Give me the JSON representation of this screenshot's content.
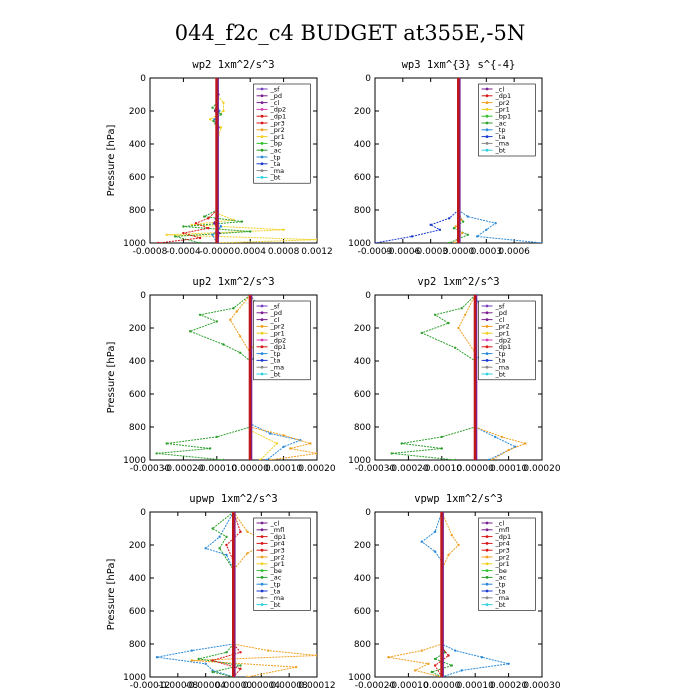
{
  "figure": {
    "title": "044_f2c_c4  BUDGET at355E,-5N"
  },
  "colors": {
    "sf": "#7a3fbf",
    "pd": "#7a1f8f",
    "cl": "#7a1f8f",
    "dp2": "#d43fb8",
    "dp1": "#d81818",
    "pr3": "#d81818",
    "pr2": "#f0a020",
    "pr1": "#f0d020",
    "bp": "#30c030",
    "bp1": "#30c030",
    "ac": "#2ea02e",
    "tp": "#2a8ad8",
    "ta": "#1b3ad0",
    "ma": "#8a8a8a",
    "bt": "#30d0e0",
    "mfl": "#7a1f8f",
    "pr4": "#d81818",
    "be": "#30c030"
  },
  "chart_data": [
    {
      "type": "line",
      "title": "wp2   1xm^2/s^3",
      "ylabel": "Pressure [hPa]",
      "ylim": [
        1000,
        0
      ],
      "xlim": [
        -0.0008,
        0.0012
      ],
      "xticks": [
        "-0.0008",
        "-0.0004",
        "-0.0000",
        "0.0004",
        "0.0008",
        "0.0012"
      ],
      "xtick_values": [
        -0.0008,
        -0.0004,
        0.0,
        0.0004,
        0.0008,
        0.0012
      ],
      "yticks": [
        "0",
        "200",
        "400",
        "600",
        "800",
        "1000"
      ],
      "legend": [
        "_sf",
        "_pd",
        "_cl",
        "_dp2",
        "_dp1",
        "_pr3",
        "_pr2",
        "_pr1",
        "_bp",
        "_ac",
        "_tp",
        "_ta",
        "_ma",
        "_bt"
      ],
      "legend_position": "top-right",
      "series": [
        {
          "name": "_pr1",
          "x": [
            0,
            0,
            8e-05,
            8e-05,
            -8e-05,
            5e-05,
            0,
            0,
            0.0002,
            -0.0003,
            0.0008,
            -0.0006,
            0.0012,
            0
          ],
          "y": [
            0,
            100,
            150,
            200,
            250,
            300,
            400,
            820,
            860,
            890,
            920,
            950,
            980,
            1000
          ]
        },
        {
          "name": "_ac",
          "x": [
            0,
            0,
            -5e-05,
            5e-05,
            -4e-05,
            0,
            0,
            -0.00015,
            0.0003,
            -0.0004,
            0.0004,
            -0.0005,
            -0.0002
          ],
          "y": [
            0,
            150,
            180,
            220,
            260,
            300,
            800,
            840,
            870,
            900,
            930,
            960,
            1000
          ]
        },
        {
          "name": "_dp1",
          "x": [
            0,
            0,
            -0.0001,
            -0.00025,
            -0.0001,
            -0.0004,
            -0.0002,
            -0.0007
          ],
          "y": [
            0,
            800,
            850,
            880,
            910,
            940,
            970,
            1000
          ]
        },
        {
          "name": "_tp",
          "x": [
            0,
            0,
            3e-05,
            -3e-05,
            0,
            0,
            5e-05,
            -5e-05,
            0
          ],
          "y": [
            0,
            150,
            200,
            250,
            300,
            860,
            900,
            950,
            1000
          ]
        },
        {
          "name": "_cl",
          "x": [
            0,
            2e-05,
            -2e-05,
            2e-05,
            0,
            0,
            -3e-05,
            3e-05,
            0
          ],
          "y": [
            0,
            100,
            200,
            300,
            400,
            820,
            880,
            940,
            1000
          ]
        }
      ]
    },
    {
      "type": "line",
      "title": "wp3   1xm^{3} s^{-4}",
      "ylabel": "",
      "ylim": [
        1000,
        0
      ],
      "xlim": [
        -0.0009,
        0.0009
      ],
      "xticks": [
        "-0.0009",
        "-0.0006",
        "-0.0003",
        "0.0000",
        "0.0003",
        "0.0006"
      ],
      "xtick_values": [
        -0.0009,
        -0.0006,
        -0.0003,
        0.0,
        0.0003,
        0.0006
      ],
      "yticks": [
        "0",
        "200",
        "400",
        "600",
        "800",
        "1000"
      ],
      "legend": [
        "_cl",
        "_dp1",
        "_pr2",
        "_pr1",
        "_bp1",
        "_ac",
        "_tp",
        "_ta",
        "_ma",
        "_bt"
      ],
      "legend_position": "top-right",
      "series": [
        {
          "name": "_ta",
          "x": [
            0,
            0,
            -0.0001,
            -0.0003,
            -0.0002,
            -0.0005,
            -0.0009
          ],
          "y": [
            0,
            800,
            850,
            890,
            920,
            960,
            1000
          ]
        },
        {
          "name": "_tp",
          "x": [
            0,
            0,
            0.0001,
            0.0004,
            0.0003,
            0.0002,
            0.0009
          ],
          "y": [
            0,
            800,
            840,
            880,
            920,
            960,
            1000
          ]
        },
        {
          "name": "_ac",
          "x": [
            0,
            0,
            5e-05,
            -5e-05,
            0.0001,
            -0.0001
          ],
          "y": [
            0,
            820,
            870,
            910,
            950,
            1000
          ]
        },
        {
          "name": "_pr2",
          "x": [
            0,
            0,
            3e-05,
            -3e-05,
            4e-05,
            -4e-05
          ],
          "y": [
            0,
            800,
            860,
            900,
            940,
            1000
          ]
        },
        {
          "name": "_dp1",
          "x": [
            0,
            0,
            0
          ],
          "y": [
            0,
            500,
            1000
          ]
        }
      ]
    },
    {
      "type": "line",
      "title": "up2   1xm^2/s^3",
      "ylabel": "Pressure [hPa]",
      "ylim": [
        1000,
        0
      ],
      "xlim": [
        -0.0003,
        0.0002
      ],
      "xticks": [
        "-0.00030",
        "-0.00020",
        "-0.00010",
        "0.00000",
        "0.00010",
        "0.00020"
      ],
      "xtick_values": [
        -0.0003,
        -0.0002,
        -0.0001,
        0.0,
        0.0001,
        0.0002
      ],
      "yticks": [
        "0",
        "200",
        "400",
        "600",
        "800",
        "1000"
      ],
      "legend": [
        "_sf",
        "_pd",
        "_cl",
        "_pr2",
        "_pr1",
        "_dp2",
        "_dp1",
        "_tp",
        "_ta",
        "_ma",
        "_bt"
      ],
      "legend_position": "top-right",
      "series": [
        {
          "name": "_ac",
          "x": [
            0,
            -5e-05,
            -0.00015,
            -0.0001,
            -0.00018,
            -8e-05,
            -3e-05,
            0,
            0,
            -0.0001,
            -0.00025,
            -0.00012,
            -0.00028,
            -8e-05
          ],
          "y": [
            0,
            80,
            120,
            160,
            220,
            300,
            350,
            400,
            800,
            860,
            900,
            930,
            960,
            1000
          ]
        },
        {
          "name": "_tp",
          "x": [
            0,
            3e-05,
            0.0001,
            0.00016,
            0.0001,
            5e-05,
            0,
            0,
            6e-05,
            0.00015,
            0.0001,
            5e-05
          ],
          "y": [
            0,
            80,
            150,
            200,
            260,
            320,
            400,
            780,
            840,
            880,
            920,
            1000
          ]
        },
        {
          "name": "_pr2",
          "x": [
            0,
            -4e-05,
            -6e-05,
            -3e-05,
            0,
            0,
            0.0001,
            0.00018,
            0.00012,
            0.0002,
            6e-05
          ],
          "y": [
            0,
            100,
            150,
            250,
            350,
            800,
            850,
            900,
            930,
            960,
            1000
          ]
        },
        {
          "name": "_pr1",
          "x": [
            0,
            3e-05,
            5e-05,
            2e-05,
            0,
            0,
            8e-05,
            3e-05
          ],
          "y": [
            0,
            120,
            180,
            260,
            350,
            820,
            900,
            1000
          ]
        },
        {
          "name": "_dp1",
          "x": [
            0,
            0,
            0
          ],
          "y": [
            0,
            500,
            1000
          ]
        }
      ]
    },
    {
      "type": "line",
      "title": "vp2   1xm^2/s^3",
      "ylabel": "",
      "ylim": [
        1000,
        0
      ],
      "xlim": [
        -0.0003,
        0.0002
      ],
      "xticks": [
        "-0.00030",
        "-0.00020",
        "-0.00010",
        "0.00000",
        "0.00010",
        "0.00020"
      ],
      "xtick_values": [
        -0.0003,
        -0.0002,
        -0.0001,
        0.0,
        0.0001,
        0.0002
      ],
      "yticks": [
        "0",
        "200",
        "400",
        "600",
        "800",
        "1000"
      ],
      "legend": [
        "_sf",
        "_pd",
        "_cl",
        "_pr2",
        "_pr1",
        "_dp2",
        "_dp1",
        "_tp",
        "_ta",
        "_ma",
        "_bt"
      ],
      "legend_position": "top-right",
      "series": [
        {
          "name": "_ac",
          "x": [
            0,
            -4e-05,
            -0.00012,
            -8e-05,
            -0.00016,
            -6e-05,
            0,
            0,
            -0.0001,
            -0.00022,
            -0.0001,
            -0.00025,
            -6e-05
          ],
          "y": [
            0,
            80,
            120,
            170,
            230,
            320,
            400,
            800,
            860,
            900,
            930,
            960,
            1000
          ]
        },
        {
          "name": "_tp",
          "x": [
            0,
            2e-05,
            6e-05,
            4e-05,
            0,
            0,
            6e-05,
            0.00012,
            4e-05
          ],
          "y": [
            0,
            100,
            200,
            300,
            400,
            800,
            860,
            920,
            1000
          ]
        },
        {
          "name": "_pr2",
          "x": [
            0,
            -3e-05,
            -5e-05,
            0,
            0,
            8e-05,
            0.00015,
            0.0001,
            5e-05
          ],
          "y": [
            0,
            120,
            200,
            350,
            800,
            860,
            900,
            940,
            1000
          ]
        },
        {
          "name": "_dp1",
          "x": [
            0,
            0,
            0
          ],
          "y": [
            0,
            500,
            1000
          ]
        }
      ]
    },
    {
      "type": "line",
      "title": "upwp   1xm^2/s^3",
      "ylabel": "Pressure [hPa]",
      "ylim": [
        1000,
        0
      ],
      "xlim": [
        -0.00012,
        0.00012
      ],
      "xticks": [
        "-0.00012",
        "-0.00008",
        "-0.00004",
        "0.00000",
        "0.00004",
        "0.00008",
        "0.00012"
      ],
      "xtick_values": [
        -0.00012,
        -8e-05,
        -4e-05,
        0.0,
        4e-05,
        8e-05,
        0.00012
      ],
      "yticks": [
        "0",
        "200",
        "400",
        "600",
        "800",
        "1000"
      ],
      "legend": [
        "_cl",
        "_mfl",
        "_dp1",
        "_pr4",
        "_pr3",
        "_pr2",
        "_pr1",
        "_be",
        "_ac",
        "_tp",
        "_ta",
        "_ma",
        "_bt"
      ],
      "legend_position": "top-right",
      "series": [
        {
          "name": "_tp",
          "x": [
            0,
            -2e-05,
            -4e-05,
            -1e-05,
            0,
            0,
            -6e-05,
            -0.00011,
            -4e-05,
            -3e-05,
            0
          ],
          "y": [
            0,
            150,
            220,
            260,
            350,
            800,
            840,
            880,
            920,
            960,
            1000
          ]
        },
        {
          "name": "_pr2",
          "x": [
            0,
            2e-05,
            5e-05,
            2e-05,
            0,
            0,
            5e-05,
            0.00012,
            -6e-05,
            9e-05,
            2e-05
          ],
          "y": [
            0,
            120,
            180,
            250,
            350,
            800,
            840,
            870,
            900,
            940,
            1000
          ]
        },
        {
          "name": "_ac",
          "x": [
            0,
            -3e-05,
            -1e-05,
            -2e-05,
            0,
            0,
            -1e-05,
            -5e-05,
            1e-05,
            -3e-05,
            0
          ],
          "y": [
            0,
            100,
            150,
            220,
            350,
            800,
            850,
            890,
            930,
            970,
            1000
          ]
        },
        {
          "name": "_dp1",
          "x": [
            0,
            1e-05,
            -1e-05,
            0,
            0,
            1e-05,
            -3e-05,
            1e-05,
            0
          ],
          "y": [
            0,
            120,
            200,
            300,
            800,
            850,
            900,
            950,
            1000
          ]
        },
        {
          "name": "_cl",
          "x": [
            0,
            0,
            0
          ],
          "y": [
            0,
            500,
            1000
          ]
        }
      ]
    },
    {
      "type": "line",
      "title": "vpwp   1xm^2/s^3",
      "ylabel": "",
      "ylim": [
        1000,
        0
      ],
      "xlim": [
        -0.0002,
        0.0003
      ],
      "xticks": [
        "-0.00020",
        "-0.00010",
        "0.00000",
        "0.00010",
        "0.00020",
        "0.00030"
      ],
      "xtick_values": [
        -0.0002,
        -0.0001,
        0.0,
        0.0001,
        0.0002,
        0.0003
      ],
      "yticks": [
        "0",
        "200",
        "400",
        "600",
        "800",
        "1000"
      ],
      "legend": [
        "_cl",
        "_mfl",
        "_dp1",
        "_pr4",
        "_pr3",
        "_pr2",
        "_pr1",
        "_be",
        "_ac",
        "_tp",
        "_ta",
        "_ma",
        "_bt"
      ],
      "legend_position": "top-right",
      "series": [
        {
          "name": "_tp",
          "x": [
            0,
            -2e-05,
            -6e-05,
            -2e-05,
            0,
            0,
            4e-05,
            0.00012,
            0.0002,
            6e-05,
            0
          ],
          "y": [
            0,
            120,
            180,
            240,
            300,
            800,
            840,
            880,
            920,
            960,
            1000
          ]
        },
        {
          "name": "_pr2",
          "x": [
            0,
            3e-05,
            5e-05,
            2e-05,
            0,
            0,
            -6e-05,
            -0.00016,
            -4e-05,
            -8e-05,
            0
          ],
          "y": [
            0,
            140,
            200,
            260,
            350,
            800,
            840,
            880,
            920,
            960,
            1000
          ]
        },
        {
          "name": "_ac",
          "x": [
            0,
            0,
            1e-05,
            -2e-05,
            3e-05,
            -3e-05,
            0
          ],
          "y": [
            0,
            800,
            850,
            890,
            930,
            970,
            1000
          ]
        },
        {
          "name": "_dp1",
          "x": [
            0,
            0,
            2e-05,
            -2e-05,
            0
          ],
          "y": [
            0,
            820,
            870,
            930,
            1000
          ]
        },
        {
          "name": "_cl",
          "x": [
            0,
            0,
            0
          ],
          "y": [
            0,
            500,
            1000
          ]
        }
      ]
    }
  ]
}
